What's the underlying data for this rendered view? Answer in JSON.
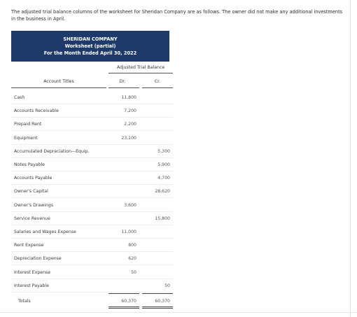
{
  "intro": {
    "text": "The adjusted trial balance columns of the worksheet for Sheridan Company are as follows. The owner did not make any additional investments in the business in April."
  },
  "banner": {
    "company": "SHERIDAN COMPANY",
    "document": "Worksheet (partial)",
    "period": "For the Month Ended April 30, 2022",
    "color": "#1d3a6b"
  },
  "columns": {
    "group": "Adjusted Trial Balance",
    "titles": "Account Titles",
    "dr": "Dr.",
    "cr": "Cr."
  },
  "rows": [
    {
      "title": "Cash",
      "dr": "11,800",
      "cr": ""
    },
    {
      "title": "Accounts Receivable",
      "dr": "7,200",
      "cr": ""
    },
    {
      "title": "Prepaid Rent",
      "dr": "2,200",
      "cr": ""
    },
    {
      "title": "Equipment",
      "dr": "23,100",
      "cr": ""
    },
    {
      "title": "Accumulated Depreciation—Equip.",
      "dr": "",
      "cr": "5,300"
    },
    {
      "title": "Notes Payable",
      "dr": "",
      "cr": "5,900"
    },
    {
      "title": "Accounts Payable",
      "dr": "",
      "cr": "4,700"
    },
    {
      "title": "Owner's Capital",
      "dr": "",
      "cr": "28,620"
    },
    {
      "title": "Owner's Drawings",
      "dr": "3,600",
      "cr": ""
    },
    {
      "title": "Service Revenue",
      "dr": "",
      "cr": "15,800"
    },
    {
      "title": "Salaries and Wages Expense",
      "dr": "11,000",
      "cr": ""
    },
    {
      "title": "Rent Expense",
      "dr": "800",
      "cr": ""
    },
    {
      "title": "Depreciation Expense",
      "dr": "620",
      "cr": ""
    },
    {
      "title": "Interest Expense",
      "dr": "50",
      "cr": ""
    },
    {
      "title": "Interest Payable",
      "dr": "",
      "cr": "50"
    }
  ],
  "totals": {
    "title": "Totals",
    "dr": "60,370",
    "cr": "60,370"
  }
}
